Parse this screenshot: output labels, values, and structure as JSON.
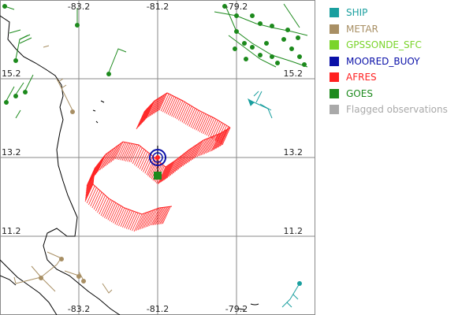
{
  "map": {
    "lon_labels": [
      "-83.2",
      "-81.2",
      "-79.2"
    ],
    "lat_labels": [
      "15.2",
      "13.2",
      "11.2"
    ]
  },
  "legend": {
    "items": [
      {
        "label": "SHIP",
        "color": "#1a9f9f"
      },
      {
        "label": "METAR",
        "color": "#a88f64"
      },
      {
        "label": "GPSSONDE_SFC",
        "color": "#7ad42a"
      },
      {
        "label": "MOORED_BUOY",
        "color": "#0a10a8"
      },
      {
        "label": "AFRES",
        "color": "#ff2020"
      },
      {
        "label": "GOES",
        "color": "#1d8a1d"
      },
      {
        "label": "Flagged observations",
        "color": "#a9a9a9"
      }
    ]
  },
  "colors": {
    "grid": "#8a8a8a",
    "coast": "#000000"
  }
}
